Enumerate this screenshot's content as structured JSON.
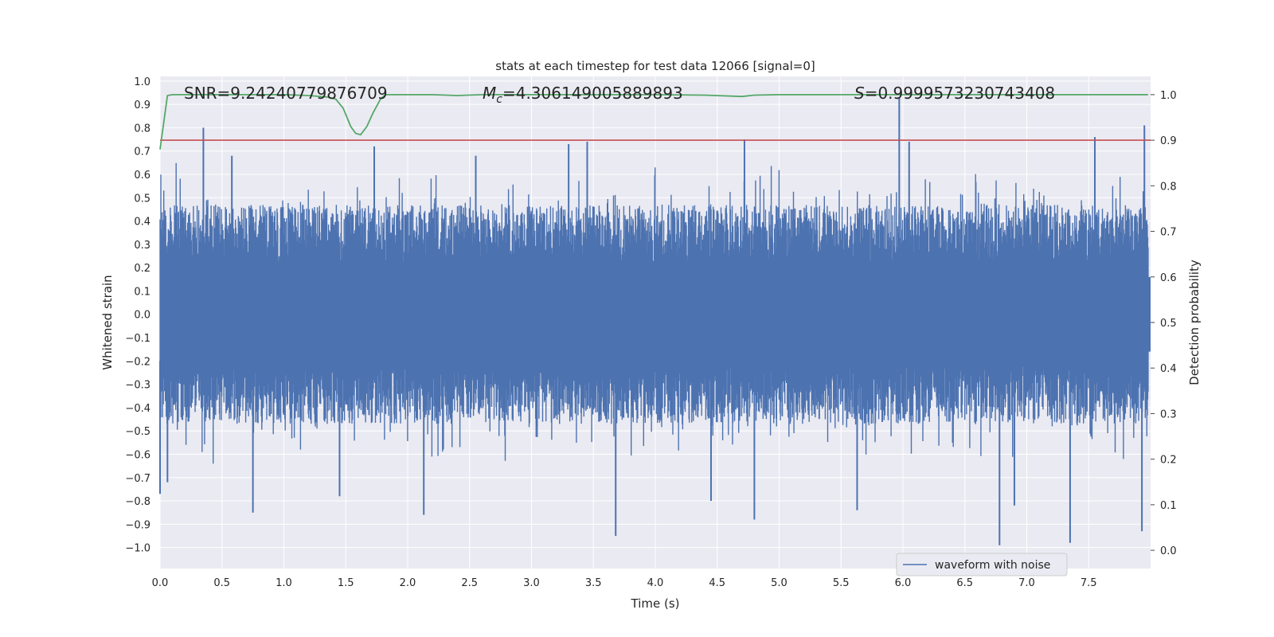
{
  "chart_data": {
    "type": "line",
    "title": "stats at each timestep for test data 12066 [signal=0]",
    "xlabel": "Time (s)",
    "ylabel_left": "Whitened strain",
    "ylabel_right": "Detection probability",
    "xlim": [
      0.0,
      8.0
    ],
    "ylim_left": [
      -1.09,
      1.02
    ],
    "ylim_right": [
      -0.04,
      1.04
    ],
    "xticks": [
      "0.0",
      "0.5",
      "1.0",
      "1.5",
      "2.0",
      "2.5",
      "3.0",
      "3.5",
      "4.0",
      "4.5",
      "5.0",
      "5.5",
      "6.0",
      "6.5",
      "7.0",
      "7.5"
    ],
    "yticks_left": [
      "1.0",
      "0.9",
      "0.8",
      "0.7",
      "0.6",
      "0.5",
      "0.4",
      "0.3",
      "0.2",
      "0.1",
      "0.0",
      "−0.1",
      "−0.2",
      "−0.3",
      "−0.4",
      "−0.5",
      "−0.6",
      "−0.7",
      "−0.8",
      "−0.9",
      "−1.0"
    ],
    "yticks_right": [
      "1.0",
      "0.9",
      "0.8",
      "0.7",
      "0.6",
      "0.5",
      "0.4",
      "0.3",
      "0.2",
      "0.1",
      "0.0"
    ],
    "grid": true,
    "annotations": {
      "snr": "SNR=9.24240779876709",
      "mc_symbol": "M",
      "mc_sub": "c",
      "mc_value": "=4.306149005889893",
      "s_symbol": "S",
      "s_value": "=0.9999573230743408"
    },
    "legend": {
      "label": "waveform with noise",
      "position": "lower-right"
    },
    "colors": {
      "waveform": "#4c72b0",
      "probability": "#55a868",
      "threshold": "#c44e52",
      "plot_bg": "#eaeaf2",
      "grid": "#ffffff"
    },
    "threshold": 0.9,
    "probability": {
      "x": [
        0.0,
        0.06,
        0.1,
        0.2,
        0.4,
        0.6,
        0.8,
        1.0,
        1.2,
        1.35,
        1.42,
        1.48,
        1.54,
        1.58,
        1.62,
        1.67,
        1.72,
        1.78,
        1.82,
        1.9,
        2.2,
        2.4,
        2.6,
        3.0,
        3.5,
        4.0,
        4.4,
        4.7,
        4.8,
        5.0,
        5.5,
        6.0,
        6.5,
        7.0,
        7.5,
        7.98
      ],
      "y": [
        0.88,
        0.998,
        1.0,
        1.0,
        1.0,
        1.0,
        1.0,
        1.0,
        0.998,
        0.995,
        0.99,
        0.97,
        0.93,
        0.915,
        0.912,
        0.93,
        0.96,
        0.99,
        1.0,
        1.0,
        1.0,
        0.998,
        1.0,
        1.0,
        1.0,
        1.0,
        0.999,
        0.996,
        0.999,
        1.0,
        1.0,
        1.0,
        1.0,
        1.0,
        1.0,
        1.0
      ]
    },
    "waveform_peaks": {
      "positive_x": [
        0.35,
        0.58,
        1.73,
        2.55,
        3.3,
        3.45,
        4.72,
        5.97,
        6.05,
        7.55,
        7.95
      ],
      "positive_y": [
        0.8,
        0.68,
        0.72,
        0.68,
        0.73,
        0.74,
        0.75,
        0.93,
        0.74,
        0.76,
        0.81
      ],
      "negative_x": [
        0.0,
        0.06,
        0.75,
        1.45,
        2.13,
        3.68,
        4.45,
        4.8,
        5.63,
        6.78,
        6.9,
        7.35,
        7.93
      ],
      "negative_y": [
        -0.77,
        -0.72,
        -0.85,
        -0.78,
        -0.86,
        -0.95,
        -0.8,
        -0.88,
        -0.84,
        -0.99,
        -0.82,
        -0.98,
        -0.93
      ]
    }
  }
}
